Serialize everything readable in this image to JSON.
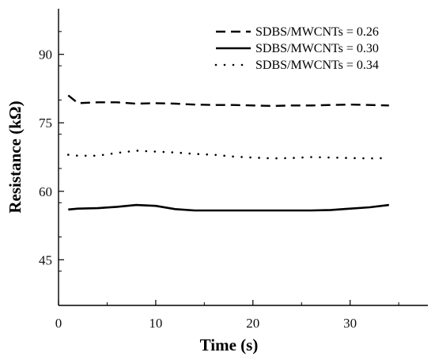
{
  "chart_data": {
    "type": "line",
    "title": "",
    "xlabel": "Time (s)",
    "ylabel": "Resistance (kΩ)",
    "xlim": [
      0,
      38
    ],
    "ylim": [
      35,
      100
    ],
    "xticks": [
      0,
      10,
      20,
      30
    ],
    "yticks": [
      45,
      60,
      75,
      90
    ],
    "grid": false,
    "legend_position": "top-right",
    "series": [
      {
        "name": "SDBS/MWCNTs = 0.26",
        "line_style": "dashed",
        "color": "#000000",
        "x": [
          1,
          2,
          4,
          6,
          8,
          10,
          12,
          14,
          16,
          18,
          20,
          22,
          24,
          26,
          28,
          30,
          32,
          34
        ],
        "y": [
          81,
          79.3,
          79.5,
          79.5,
          79.2,
          79.3,
          79.2,
          79.0,
          78.9,
          78.9,
          78.8,
          78.7,
          78.8,
          78.8,
          78.9,
          79.0,
          78.9,
          78.8
        ]
      },
      {
        "name": "SDBS/MWCNTs = 0.30",
        "line_style": "solid",
        "color": "#000000",
        "x": [
          1,
          2,
          4,
          6,
          8,
          10,
          12,
          14,
          16,
          18,
          20,
          22,
          24,
          26,
          28,
          30,
          32,
          34
        ],
        "y": [
          56.0,
          56.2,
          56.3,
          56.6,
          57.0,
          56.8,
          56.1,
          55.8,
          55.8,
          55.8,
          55.8,
          55.8,
          55.8,
          55.8,
          55.9,
          56.2,
          56.5,
          57.0
        ]
      },
      {
        "name": "SDBS/MWCNTs = 0.34",
        "line_style": "dotted",
        "color": "#000000",
        "x": [
          1,
          2,
          4,
          6,
          8,
          10,
          12,
          14,
          16,
          18,
          20,
          22,
          24,
          26,
          28,
          30,
          32,
          34
        ],
        "y": [
          68.0,
          67.8,
          67.8,
          68.4,
          68.9,
          68.7,
          68.5,
          68.2,
          68.0,
          67.6,
          67.4,
          67.2,
          67.3,
          67.5,
          67.4,
          67.3,
          67.2,
          67.3
        ]
      }
    ]
  }
}
